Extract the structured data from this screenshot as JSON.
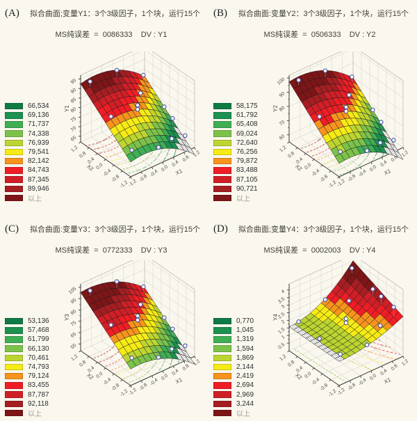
{
  "figure": {
    "background": "#faf7ee",
    "palette": [
      "#0f7b44",
      "#1c9150",
      "#3fae54",
      "#7cc24a",
      "#bcd531",
      "#f6eb16",
      "#f7941e",
      "#ef1d25",
      "#d01f27",
      "#a61e22",
      "#7e1517"
    ],
    "point_style": {
      "fill": "#ffffff",
      "stroke": "#4a55a8"
    },
    "hatch_line_color": "#55504a"
  },
  "design_points": [
    [
      -1,
      1,
      2.2
    ],
    [
      0,
      1,
      2.8
    ],
    [
      1,
      1,
      2.2
    ],
    [
      -1,
      0,
      1.2
    ],
    [
      0,
      0,
      1.8
    ],
    [
      1,
      0,
      2.6
    ],
    [
      -1,
      -1,
      0.8
    ],
    [
      0,
      -1,
      -2.2
    ],
    [
      1,
      -1,
      4.2
    ],
    [
      0,
      0,
      0.05
    ],
    [
      0.5,
      0.5,
      0.05
    ],
    [
      1,
      -0.4,
      3.2
    ],
    [
      0.5,
      -1,
      1.5
    ]
  ],
  "chart_data": [
    {
      "type": "surface3d",
      "panel_label": "(A)",
      "title": "拟合曲面;变量Y1：3个3级因子，1个块，运行15个",
      "subtitle": "MS纯误差  =  0086333    DV : Y1",
      "xlabel": "X1",
      "ylabel": "X2",
      "zlabel": "Y1",
      "x_range": [
        -1.2,
        1.2
      ],
      "y_range": [
        -1.2,
        1.2
      ],
      "z_axis": {
        "ticks": [
          65,
          70,
          75,
          80,
          85,
          90,
          95
        ],
        "range": [
          62,
          97
        ]
      },
      "legend_values": [
        "66,534",
        "69,136",
        "71,737",
        "74,338",
        "76,939",
        "79,541",
        "82,142",
        "84,743",
        "87,345",
        "89,946",
        "以上"
      ],
      "surface": {
        "form": "ridge",
        "a": 80.5,
        "bv": 9.5,
        "cu2": -3.5,
        "du": -4,
        "u0": 0.1
      }
    },
    {
      "type": "surface3d",
      "panel_label": "(B)",
      "title": "拟合曲面:变量Y2：3个3级因子，1个块，运行15个",
      "subtitle": "MS纯误差  =  0506333    DV : Y2",
      "xlabel": "X1",
      "ylabel": "X2",
      "zlabel": "Y2",
      "x_range": [
        -1.2,
        1.2
      ],
      "y_range": [
        -1.2,
        1.2
      ],
      "z_axis": {
        "ticks": [
          60,
          70,
          80,
          90,
          100
        ],
        "range": [
          55,
          102
        ]
      },
      "legend_values": [
        "58,175",
        "61,792",
        "65,408",
        "69,024",
        "72,640",
        "76,256",
        "79,872",
        "83,488",
        "87,105",
        "90,721",
        "以上"
      ],
      "surface": {
        "form": "ridge",
        "a": 78.5,
        "bv": 13.75,
        "cu2": -4.5,
        "du": -6.5,
        "u0": 0.1
      }
    },
    {
      "type": "surface3d",
      "panel_label": "(C)",
      "title": "拟合曲面:变量Y3：3个3级因子，1个块，运行15个",
      "subtitle": "MS纯误差  =  0772333    DV : Y3",
      "xlabel": "X1",
      "ylabel": "X2",
      "zlabel": "Y3",
      "x_range": [
        -1.2,
        1.2
      ],
      "y_range": [
        -1.2,
        1.2
      ],
      "z_axis": {
        "ticks": [
          55,
          65,
          75,
          85,
          95,
          105
        ],
        "range": [
          49,
          108
        ]
      },
      "legend_values": [
        "53,136",
        "57,468",
        "61,799",
        "66,130",
        "70,461",
        "74,793",
        "79,124",
        "83,455",
        "87,787",
        "92,118",
        "以上"
      ],
      "surface": {
        "form": "ridge",
        "a": 78.5,
        "bv": 15.4,
        "cu2": -5,
        "du": -8,
        "u0": 0.1
      }
    },
    {
      "type": "surface3d",
      "panel_label": "(D)",
      "title": "拟合曲面;变量Y4：3个3级因子，1个块，运行15个",
      "subtitle": "MS纯误差  =  0002003    DV : Y4",
      "xlabel": "X1",
      "ylabel": "X2",
      "zlabel": "Y4",
      "x_range": [
        -1.2,
        1.2
      ],
      "y_range": [
        -1.2,
        1.2
      ],
      "z_axis": {
        "ticks": [
          0.5,
          1.0,
          1.5,
          2.0,
          2.5,
          3.0,
          3.5,
          4.0
        ],
        "range": [
          0,
          4.4
        ]
      },
      "legend_values": [
        "0,770",
        "1,045",
        "1,319",
        "1,594",
        "1,869",
        "2,144",
        "2,419",
        "2,694",
        "2,969",
        "3,244",
        "以上"
      ],
      "surface": {
        "form": "corner",
        "a": 1.58,
        "k": 0.3,
        "kv": 0.1,
        "underside_hatch_u_below": -0.92
      }
    }
  ]
}
